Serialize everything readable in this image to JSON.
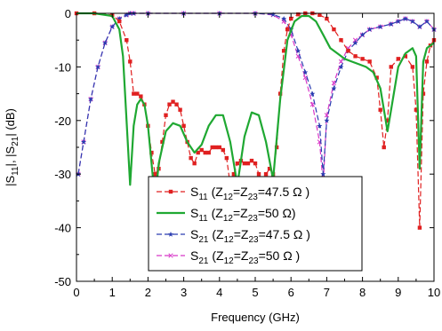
{
  "chart_data": {
    "type": "line",
    "xlabel": "Frequency (GHz)",
    "ylabel": "|S11|, |S21| (dB)",
    "ylabel_parts": [
      "|S",
      "11",
      "|, |S",
      "21",
      "| (dB)"
    ],
    "xlim": [
      0,
      10
    ],
    "ylim": [
      -50,
      0
    ],
    "x_ticks": [
      0,
      1,
      2,
      3,
      4,
      5,
      6,
      7,
      8,
      9,
      10
    ],
    "y_ticks": [
      0,
      -10,
      -20,
      -30,
      -40,
      -50
    ],
    "grid": false,
    "legend_position": "center-bottom",
    "series": [
      {
        "name": "S11 (Z12=Z23=47.5 Ω)",
        "legend": {
          "main": "S",
          "sub1": "11",
          "p1": " (Z",
          "sub2": "12",
          "p2": "=Z",
          "sub3": "23",
          "p3": "=47.5 Ω )"
        },
        "color": "#e02020",
        "dash": "6,3",
        "marker": "square",
        "x": [
          0,
          0.5,
          1,
          1.2,
          1.4,
          1.5,
          1.6,
          1.7,
          1.8,
          1.9,
          2.0,
          2.1,
          2.2,
          2.3,
          2.4,
          2.5,
          2.6,
          2.7,
          2.8,
          2.9,
          3.0,
          3.1,
          3.2,
          3.3,
          3.4,
          3.5,
          3.6,
          3.7,
          3.8,
          3.9,
          4.0,
          4.1,
          4.2,
          4.3,
          4.4,
          4.5,
          4.6,
          4.7,
          4.8,
          4.9,
          5.0,
          5.1,
          5.2,
          5.3,
          5.4,
          5.5,
          5.6,
          5.7,
          5.8,
          5.9,
          6.0,
          6.2,
          6.4,
          6.6,
          6.8,
          7.0,
          7.2,
          7.4,
          7.6,
          7.8,
          8.0,
          8.2,
          8.4,
          8.5,
          8.6,
          8.7,
          8.8,
          9.0,
          9.2,
          9.4,
          9.5,
          9.6,
          9.7,
          9.8,
          9.9,
          10.0
        ],
        "y": [
          0,
          0,
          -0.3,
          -1.5,
          -5,
          -9,
          -15,
          -15,
          -15.5,
          -17,
          -21,
          -26,
          -30,
          -29,
          -24,
          -19,
          -17,
          -16.5,
          -17,
          -18,
          -21,
          -24,
          -27,
          -28,
          -26,
          -25.5,
          -26,
          -26,
          -25,
          -25,
          -25,
          -25.5,
          -27,
          -32,
          -30,
          -28,
          -27.5,
          -28,
          -28,
          -27.5,
          -28,
          -30,
          -31,
          -30,
          -29,
          -30,
          -25,
          -15,
          -7,
          -3,
          -1,
          -0.2,
          0,
          0,
          -0.3,
          -1,
          -3,
          -5,
          -7,
          -8,
          -8.5,
          -9,
          -12,
          -18,
          -25,
          -20,
          -10,
          -8.5,
          -8,
          -10,
          -18,
          -40,
          -15,
          -9,
          -6,
          -5
        ]
      },
      {
        "name": "S11 (Z12=Z23=50 Ω)",
        "legend": {
          "main": "S",
          "sub1": "11",
          "p1": " (Z",
          "sub2": "12",
          "p2": "=Z",
          "sub3": "23",
          "p3": "=50 Ω)"
        },
        "color": "#1fa832",
        "dash": "",
        "marker": "none",
        "x": [
          0,
          0.5,
          1,
          1.2,
          1.3,
          1.4,
          1.5,
          1.6,
          1.7,
          1.8,
          1.9,
          2.0,
          2.1,
          2.2,
          2.3,
          2.5,
          2.7,
          2.9,
          3.1,
          3.3,
          3.5,
          3.7,
          3.9,
          4.1,
          4.3,
          4.5,
          4.7,
          4.9,
          5.1,
          5.3,
          5.5,
          5.7,
          5.9,
          6.1,
          6.3,
          6.5,
          6.7,
          6.9,
          7.1,
          7.3,
          7.5,
          7.7,
          7.9,
          8.1,
          8.3,
          8.5,
          8.6,
          8.7,
          8.8,
          9.0,
          9.2,
          9.4,
          9.5,
          9.6,
          9.7,
          9.8,
          9.9,
          10.0
        ],
        "y": [
          0,
          0,
          -0.5,
          -3,
          -8,
          -20,
          -32,
          -21,
          -17,
          -16,
          -17,
          -21,
          -28,
          -35,
          -28,
          -22,
          -20.5,
          -21,
          -24,
          -26,
          -24.5,
          -21,
          -19,
          -19,
          -24,
          -32,
          -23,
          -18.5,
          -19,
          -24,
          -31,
          -16,
          -5,
          -1.5,
          -0.5,
          -0.5,
          -1.5,
          -4,
          -6.5,
          -7.5,
          -8.5,
          -9,
          -9.5,
          -10,
          -11,
          -14,
          -18,
          -22,
          -18,
          -10,
          -7.5,
          -6.5,
          -8,
          -29,
          -9,
          -6.5,
          -6,
          -5.5
        ]
      },
      {
        "name": "S21 (Z12=Z23=47.5 Ω)",
        "legend": {
          "main": "S",
          "sub1": "21",
          "p1": " (Z",
          "sub2": "12",
          "p2": "=Z",
          "sub3": "23",
          "p3": "=47.5 Ω )"
        },
        "color": "#2a3cb0",
        "dash": "6,3",
        "marker": "star",
        "x": [
          0.05,
          0.2,
          0.4,
          0.6,
          0.8,
          1.0,
          1.2,
          1.4,
          1.5,
          1.6,
          2.0,
          3.0,
          4.0,
          5.0,
          5.5,
          5.8,
          6.0,
          6.2,
          6.4,
          6.6,
          6.8,
          6.9,
          7.0,
          7.2,
          7.4,
          7.6,
          7.8,
          8.0,
          8.2,
          8.5,
          8.8,
          9.0,
          9.2,
          9.4,
          9.6,
          9.8,
          10.0
        ],
        "y": [
          -30,
          -24,
          -16,
          -10,
          -5.5,
          -2.5,
          -1,
          -0.3,
          0,
          0,
          0,
          0,
          0,
          0,
          -0.2,
          -1,
          -3,
          -7,
          -11,
          -15,
          -21,
          -30,
          -20,
          -14,
          -10,
          -7,
          -5.5,
          -4,
          -3,
          -2.5,
          -2,
          -1.5,
          -1,
          -1.5,
          -2.5,
          -1.5,
          -3
        ]
      },
      {
        "name": "S21 (Z12=Z23=50 Ω)",
        "legend": {
          "main": "S",
          "sub1": "21",
          "p1": " (Z",
          "sub2": "12",
          "p2": "=Z",
          "sub3": "23",
          "p3": "=50 Ω )"
        },
        "color": "#d838c8",
        "dash": "6,3",
        "marker": "x",
        "x": [
          0.05,
          0.2,
          0.4,
          0.6,
          0.8,
          1.0,
          1.2,
          1.4,
          1.5,
          1.6,
          2.0,
          3.0,
          4.0,
          5.0,
          5.5,
          5.8,
          6.0,
          6.2,
          6.4,
          6.6,
          6.8,
          6.9,
          7.0,
          7.2,
          7.4,
          7.6,
          7.8,
          8.0,
          8.2,
          8.5,
          8.8,
          9.0,
          9.2,
          9.4,
          9.6,
          9.8,
          10.0
        ],
        "y": [
          -30,
          -24,
          -16,
          -10,
          -5.5,
          -2.5,
          -1,
          -0.3,
          0,
          0,
          0,
          0,
          0,
          0,
          -0.3,
          -1.5,
          -4,
          -8,
          -12,
          -17,
          -24,
          -32,
          -19,
          -13,
          -9,
          -6.5,
          -5,
          -4,
          -3,
          -2.5,
          -2,
          -1.5,
          -1,
          -1.5,
          -2.5,
          -1.5,
          -3
        ]
      }
    ]
  }
}
